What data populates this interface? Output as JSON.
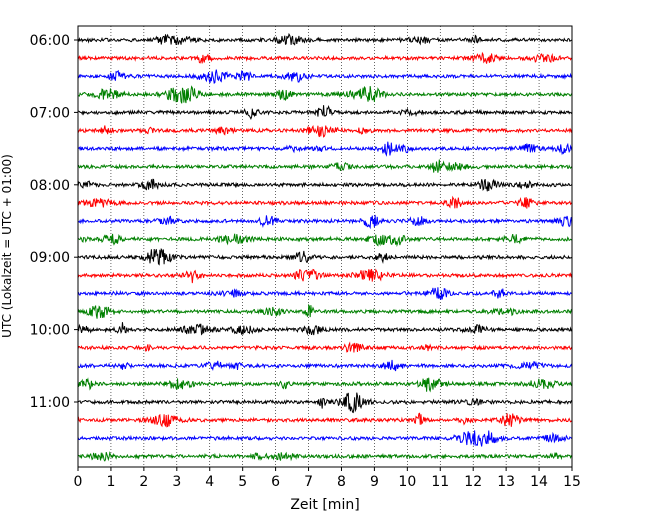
{
  "chart_data": {
    "type": "line",
    "title": "",
    "xlabel": "Zeit  [min]",
    "ylabel": "UTC (Lokalzeit = UTC + 01:00)",
    "xlim": [
      0,
      15
    ],
    "x_ticks": [
      "0",
      "1",
      "2",
      "3",
      "4",
      "5",
      "6",
      "7",
      "8",
      "9",
      "10",
      "11",
      "12",
      "13",
      "14",
      "15"
    ],
    "y_ticks": [
      {
        "label": "06:00",
        "row": 0
      },
      {
        "label": "07:00",
        "row": 4
      },
      {
        "label": "08:00",
        "row": 8
      },
      {
        "label": "09:00",
        "row": 12
      },
      {
        "label": "10:00",
        "row": 16
      },
      {
        "label": "11:00",
        "row": 20
      }
    ],
    "rows": 24,
    "row_interval_minutes": 15,
    "grid": "vertical-dotted",
    "trace_colors": [
      "#000000",
      "#ff0000",
      "#0000ff",
      "#008000"
    ]
  }
}
